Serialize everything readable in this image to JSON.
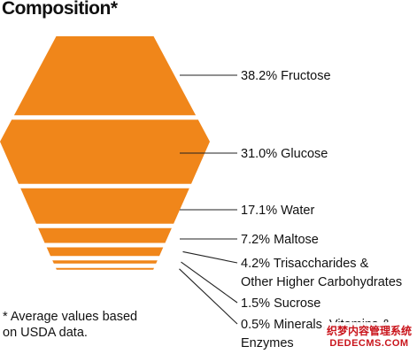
{
  "chart_data": {
    "type": "hexagon-stack",
    "title": "Composition*",
    "unit": "%",
    "segments": [
      {
        "label": "Fructose",
        "value": 38.2,
        "lines": [
          "38.2% Fructose"
        ]
      },
      {
        "label": "Glucose",
        "value": 31.0,
        "lines": [
          "31.0% Glucose"
        ]
      },
      {
        "label": "Water",
        "value": 17.1,
        "lines": [
          "17.1% Water"
        ]
      },
      {
        "label": "Maltose",
        "value": 7.2,
        "lines": [
          "7.2% Maltose"
        ]
      },
      {
        "label": "Trisaccharides & Other Higher Carbohydrates",
        "value": 4.2,
        "lines": [
          "4.2% Trisaccharides &",
          "Other Higher Carbohydrates"
        ]
      },
      {
        "label": "Sucrose",
        "value": 1.5,
        "lines": [
          "1.5% Sucrose"
        ]
      },
      {
        "label": "Minerals, Vitamins & Enzymes",
        "value": 0.5,
        "lines": [
          "0.5% Minerals, Vitamins &",
          "Enzymes"
        ]
      }
    ],
    "footnote": [
      "* Average values based",
      "on USDA data."
    ],
    "colors": {
      "fill": "#f0861a",
      "separator": "#ffffff",
      "leader": "#222222",
      "text": "#111111"
    }
  },
  "watermark": {
    "text_cn": "织梦内容管理系统",
    "text_domain": "DEDECMS.COM"
  }
}
